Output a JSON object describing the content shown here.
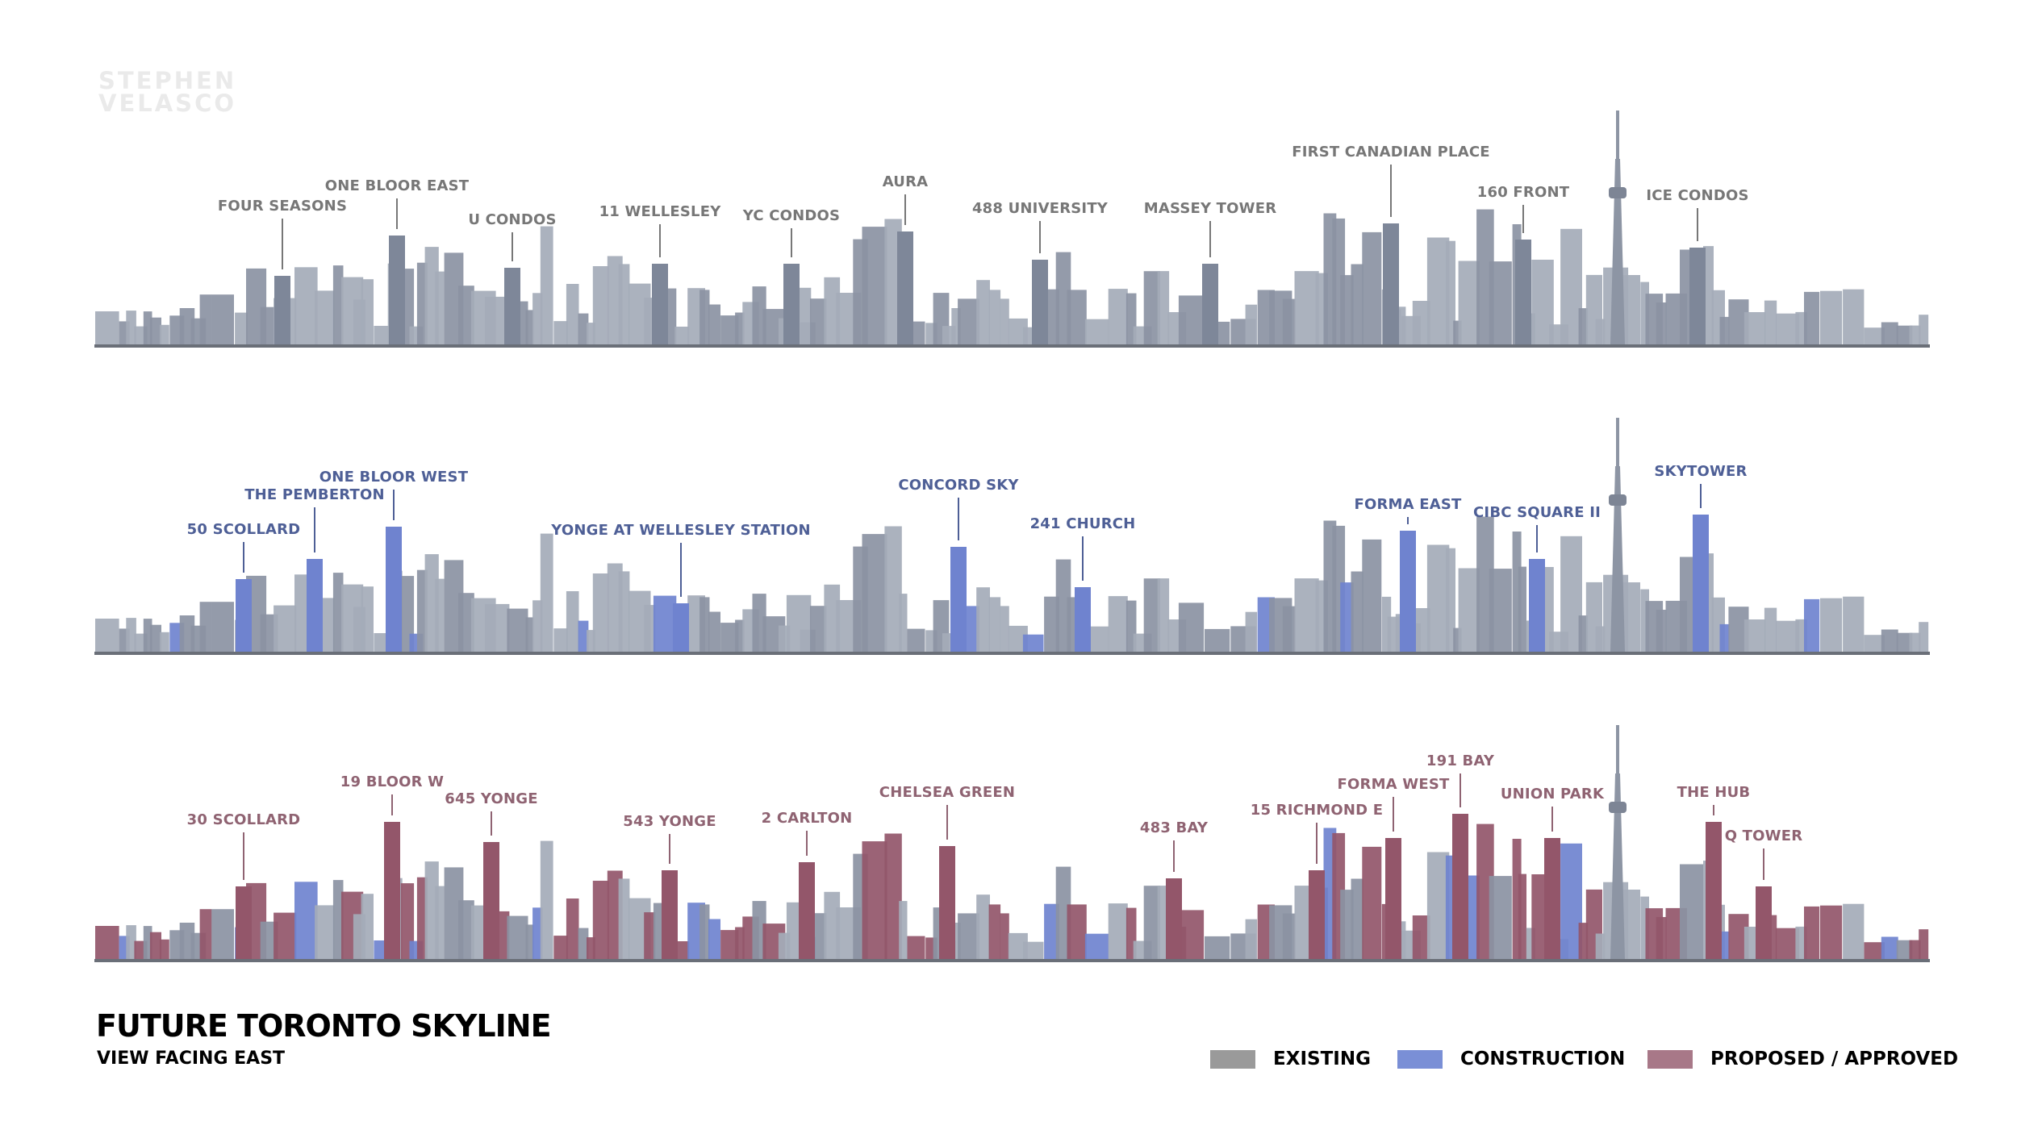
{
  "watermark": {
    "line1": "STEPHEN",
    "line2": "VELASCO"
  },
  "title": "FUTURE TORONTO SKYLINE",
  "subtitle": "VIEW FACING EAST",
  "legend": [
    {
      "label": "EXISTING",
      "color": "#9a9a9a"
    },
    {
      "label": "CONSTRUCTION",
      "color": "#7a8fd6"
    },
    {
      "label": "PROPOSED / APPROVED",
      "color": "#a87888"
    }
  ],
  "panels": [
    {
      "id": "existing",
      "label_color": "#777777",
      "labels": [
        "FOUR SEASONS",
        "ONE BLOOR EAST",
        "U CONDOS",
        "11 WELLESLEY",
        "YC CONDOS",
        "AURA",
        "488 UNIVERSITY",
        "MASSEY TOWER",
        "FIRST CANADIAN PLACE",
        "160 FRONT",
        "ICE CONDOS"
      ]
    },
    {
      "id": "construction",
      "label_color": "#4e5f96",
      "labels": [
        "50 SCOLLARD",
        "THE PEMBERTON",
        "ONE BLOOR WEST",
        "YONGE AT WELLESLEY STATION",
        "CONCORD SKY",
        "241 CHURCH",
        "FORMA EAST",
        "CIBC SQUARE II",
        "SKYTOWER"
      ]
    },
    {
      "id": "proposed",
      "label_color": "#8f6372",
      "labels": [
        "30 SCOLLARD",
        "19 BLOOR W",
        "645 YONGE",
        "543 YONGE",
        "2 CARLTON",
        "CHELSEA GREEN",
        "483 BAY",
        "15 RICHMOND E",
        "FORMA WEST",
        "191 BAY",
        "UNION PARK",
        "THE HUB",
        "Q TOWER"
      ]
    }
  ]
}
